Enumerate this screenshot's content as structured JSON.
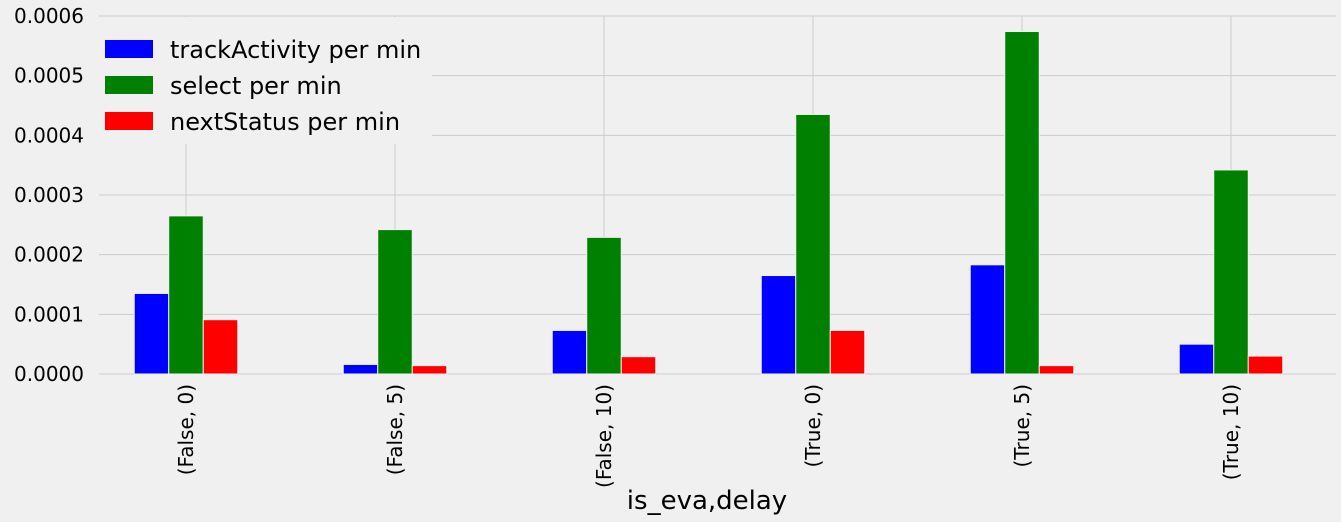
{
  "chart_data": {
    "type": "bar",
    "xlabel": "is_eva,delay",
    "ylabel": "",
    "ylim": [
      0,
      0.0006
    ],
    "yticks": [
      "0.0000",
      "0.0001",
      "0.0002",
      "0.0003",
      "0.0004",
      "0.0005",
      "0.0006"
    ],
    "grid": true,
    "legend_position": "top-left",
    "categories": [
      "(False, 0)",
      "(False, 5)",
      "(False, 10)",
      "(True, 0)",
      "(True, 5)",
      "(True, 10)"
    ],
    "series": [
      {
        "name": "trackActivity per min",
        "color": "#0000ff",
        "values": [
          0.000135,
          1.6e-05,
          7.3e-05,
          0.000165,
          0.000183,
          5e-05
        ]
      },
      {
        "name": "select per min",
        "color": "#008000",
        "values": [
          0.000265,
          0.000242,
          0.000229,
          0.000435,
          0.000574,
          0.000342
        ]
      },
      {
        "name": "nextStatus per min",
        "color": "#ff0000",
        "values": [
          9.1e-05,
          1.4e-05,
          2.9e-05,
          7.3e-05,
          1.4e-05,
          3e-05
        ]
      }
    ]
  }
}
